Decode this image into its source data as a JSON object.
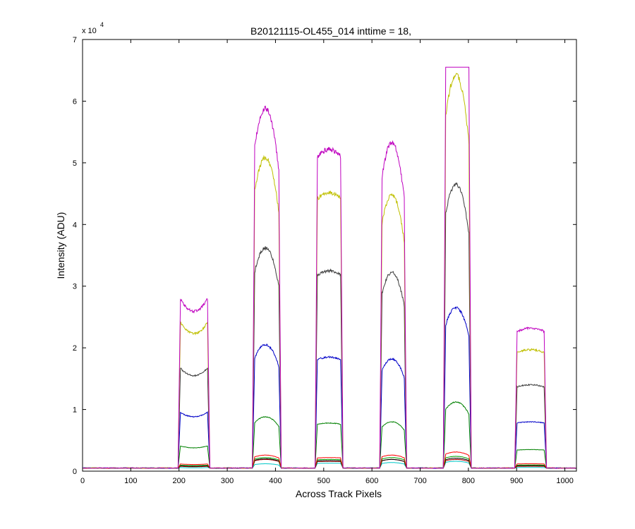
{
  "chart_data": {
    "type": "line",
    "title": "B20121115-OL455_014 inttime = 18,",
    "xlabel": "Across Track Pixels",
    "ylabel": "Intensity (ADU)",
    "y_exponent_label": "x 10",
    "y_exponent_power": "4",
    "xlim": [
      0,
      1024
    ],
    "ylim": [
      0,
      7
    ],
    "xticks": [
      0,
      100,
      200,
      300,
      400,
      500,
      600,
      700,
      800,
      900,
      1000
    ],
    "yticks": [
      0,
      1,
      2,
      3,
      4,
      5,
      6,
      7
    ],
    "grid": false,
    "baseline": 0.05,
    "blocks": [
      {
        "start": 198,
        "end": 264,
        "shape": "dip"
      },
      {
        "start": 352,
        "end": 412,
        "shape": "peak"
      },
      {
        "start": 482,
        "end": 540,
        "shape": "flat"
      },
      {
        "start": 616,
        "end": 672,
        "shape": "peak"
      },
      {
        "start": 748,
        "end": 806,
        "shape": "peak"
      },
      {
        "start": 896,
        "end": 962,
        "shape": "flat"
      }
    ],
    "series": [
      {
        "color": "#00c8c8",
        "block_levels": [
          0.06,
          0.12,
          0.13,
          0.14,
          0.16,
          0.06
        ]
      },
      {
        "color": "#b20000",
        "block_levels": [
          0.08,
          0.19,
          0.16,
          0.19,
          0.19,
          0.08
        ]
      },
      {
        "color": "#000000",
        "block_levels": [
          0.09,
          0.2,
          0.17,
          0.19,
          0.21,
          0.09
        ]
      },
      {
        "color": "#00a000",
        "block_levels": [
          0.1,
          0.22,
          0.19,
          0.22,
          0.24,
          0.1
        ]
      },
      {
        "color": "#ff0000",
        "block_levels": [
          0.12,
          0.26,
          0.22,
          0.26,
          0.31,
          0.12
        ]
      },
      {
        "color": "#008000",
        "block_levels": [
          0.42,
          0.88,
          0.78,
          0.8,
          1.12,
          0.35
        ]
      },
      {
        "color": "#0000c8",
        "block_levels": [
          0.98,
          2.05,
          1.85,
          1.82,
          2.65,
          0.8
        ]
      },
      {
        "color": "#3c3c3c",
        "block_levels": [
          1.72,
          3.62,
          3.25,
          3.22,
          4.65,
          1.4
        ]
      },
      {
        "color": "#bfbf00",
        "block_levels": [
          2.48,
          5.08,
          4.52,
          4.48,
          6.42,
          1.97
        ]
      },
      {
        "color": "#bf00bf",
        "block_levels": [
          2.88,
          5.88,
          5.22,
          5.32,
          6.55,
          2.32
        ]
      }
    ]
  }
}
